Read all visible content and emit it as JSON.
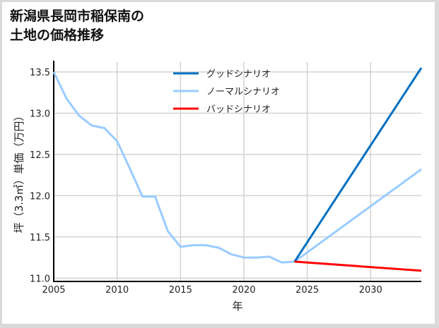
{
  "title_line1": "新潟県長岡市稲保南の",
  "title_line2": "土地の価格推移",
  "colors": {
    "good": "#0070c0",
    "normal": "#99ccff",
    "bad": "#ff0000",
    "grid": "#d3d3d3",
    "axis": "#000000"
  },
  "chart_data": {
    "type": "line",
    "title": "新潟県長岡市稲保南の土地の価格推移",
    "xlabel": "年",
    "ylabel": "坪（3.3㎡）単価（万円）",
    "xlim": [
      2005,
      2034
    ],
    "ylim": [
      10.96,
      13.62
    ],
    "x_ticks": [
      2005,
      2010,
      2015,
      2020,
      2025,
      2030
    ],
    "y_ticks": [
      11.0,
      11.5,
      12.0,
      12.5,
      13.0,
      13.5
    ],
    "y_tick_labels": [
      "11.0",
      "11.5",
      "12.0",
      "12.5",
      "13.0",
      "13.5"
    ],
    "grid": true,
    "legend_position": "upper center",
    "series": [
      {
        "name": "グッドシナリオ",
        "color": "#0070c0",
        "x": [
          2024,
          2034
        ],
        "values": [
          11.2,
          13.55
        ]
      },
      {
        "name": "ノーマルシナリオ",
        "color": "#99ccff",
        "x": [
          2005,
          2006,
          2007,
          2008,
          2009,
          2010,
          2011,
          2012,
          2013,
          2014,
          2015,
          2016,
          2017,
          2018,
          2019,
          2020,
          2021,
          2022,
          2023,
          2024,
          2034
        ],
        "values": [
          13.5,
          13.18,
          12.97,
          12.85,
          12.82,
          12.66,
          12.33,
          11.99,
          11.99,
          11.57,
          11.38,
          11.4,
          11.4,
          11.37,
          11.29,
          11.25,
          11.25,
          11.26,
          11.19,
          11.2,
          12.32
        ]
      },
      {
        "name": "バッドシナリオ",
        "color": "#ff0000",
        "x": [
          2024,
          2034
        ],
        "values": [
          11.2,
          11.09
        ]
      }
    ]
  }
}
